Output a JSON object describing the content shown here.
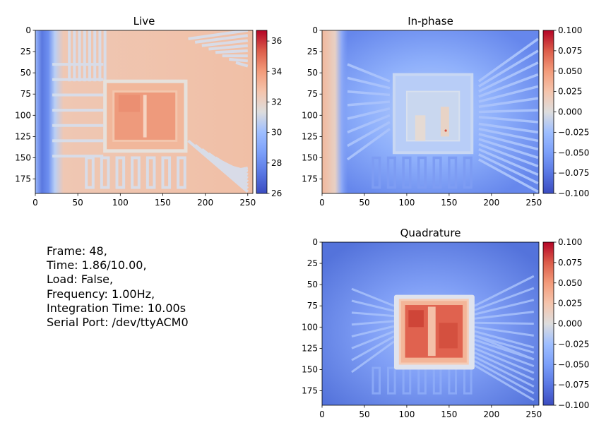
{
  "chart_data": [
    {
      "type": "heatmap",
      "title": "Live",
      "xlim": [
        0,
        256
      ],
      "ylim": [
        192,
        0
      ],
      "xticks": [
        0,
        50,
        100,
        150,
        200,
        250
      ],
      "yticks": [
        0,
        25,
        50,
        75,
        100,
        125,
        150,
        175
      ],
      "colormap": "coolwarm",
      "colorbar": {
        "min": 26,
        "max": 36.7,
        "ticks": [
          26,
          28,
          30,
          32,
          34,
          36
        ]
      },
      "grid": false
    },
    {
      "type": "heatmap",
      "title": "In-phase",
      "xlim": [
        0,
        256
      ],
      "ylim": [
        192,
        0
      ],
      "xticks": [
        0,
        50,
        100,
        150,
        200,
        250
      ],
      "yticks": [
        0,
        25,
        50,
        75,
        100,
        125,
        150,
        175
      ],
      "colormap": "coolwarm",
      "colorbar": {
        "min": -0.1,
        "max": 0.1,
        "ticks": [
          "0.100",
          "0.075",
          "0.050",
          "0.025",
          "0.000",
          "−0.025",
          "−0.050",
          "−0.075",
          "−0.100"
        ]
      },
      "grid": false
    },
    {
      "type": "heatmap",
      "title": "Quadrature",
      "xlim": [
        0,
        256
      ],
      "ylim": [
        192,
        0
      ],
      "xticks": [
        0,
        50,
        100,
        150,
        200,
        250
      ],
      "yticks": [
        0,
        25,
        50,
        75,
        100,
        125,
        150,
        175
      ],
      "colormap": "coolwarm",
      "colorbar": {
        "min": -0.1,
        "max": 0.1,
        "ticks": [
          "0.100",
          "0.075",
          "0.050",
          "0.025",
          "0.000",
          "−0.025",
          "−0.050",
          "−0.075",
          "−0.100"
        ]
      },
      "grid": false
    }
  ],
  "status": {
    "lines": [
      "Frame: 48,",
      "Time: 1.86/10.00,",
      "Load: False,",
      "Frequency: 1.00Hz,",
      "Integration Time: 10.00s",
      "Serial Port: /dev/ttyACM0"
    ]
  },
  "colors": {
    "cold": "#3b4cc0",
    "neutral": "#dddddd",
    "hot": "#b40426"
  }
}
